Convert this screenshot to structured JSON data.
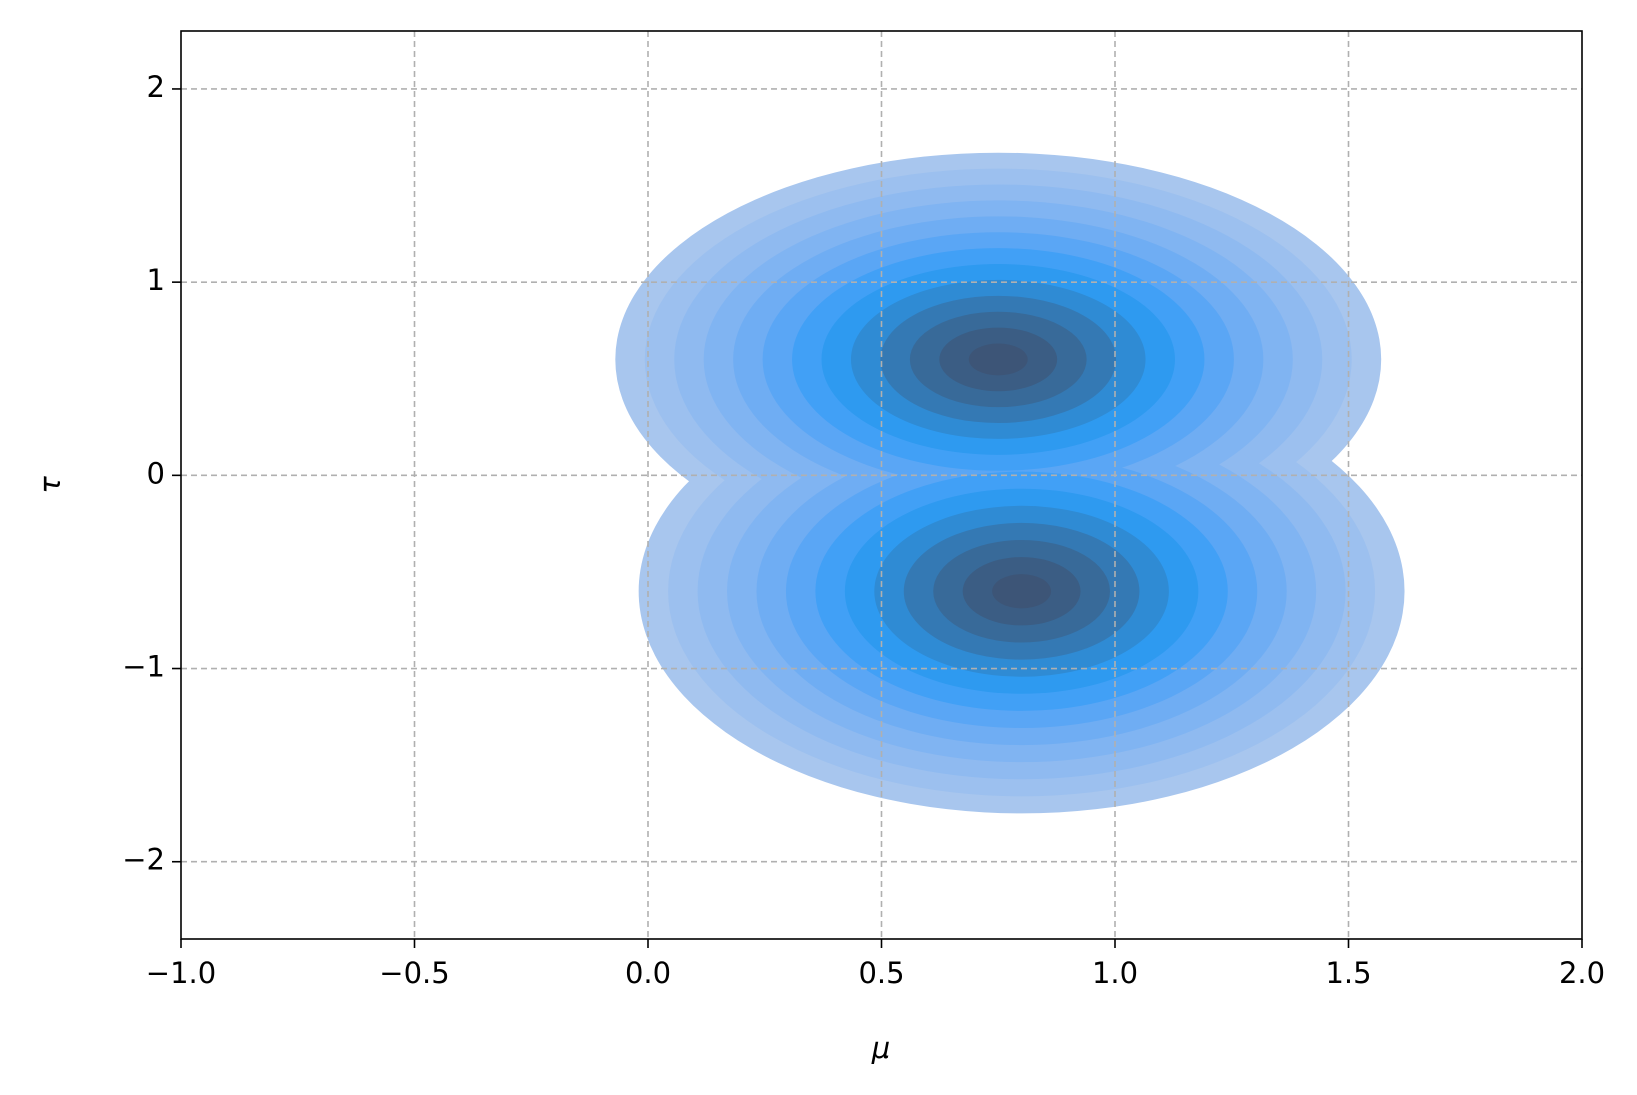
{
  "chart_data": {
    "type": "kde",
    "xlabel": "μ",
    "ylabel": "τ",
    "xlim": [
      -1,
      2
    ],
    "ylim": [
      -2.4,
      2.3
    ],
    "xticks": [
      {
        "value": -1,
        "label": "−1.0"
      },
      {
        "value": -0.5,
        "label": "−0.5"
      },
      {
        "value": 0,
        "label": "0.0"
      },
      0.5,
      {
        "value": 1,
        "label": "1.0"
      },
      1.5,
      {
        "value": 2,
        "label": "2.0"
      }
    ],
    "yticks": [
      {
        "value": -2,
        "label": "−2"
      },
      {
        "value": -1,
        "label": "−1"
      },
      0,
      1,
      2
    ],
    "grid": true,
    "components": [
      {
        "mu": 0.75,
        "tau": 0.6,
        "spread_mu": 0.82,
        "spread_tau": 1.07
      },
      {
        "mu": 0.8,
        "tau": -0.6,
        "spread_mu": 0.82,
        "spread_tau": 1.15
      }
    ],
    "colors": [
      "#a8c6ee",
      "#9cc0ef",
      "#8fbaf0",
      "#80b4f2",
      "#6fadf3",
      "#5aa6f5",
      "#41a0f6",
      "#2e9af0",
      "#2f8bd4",
      "#3479b4",
      "#386a99",
      "#3b5d84",
      "#3d5577"
    ]
  }
}
